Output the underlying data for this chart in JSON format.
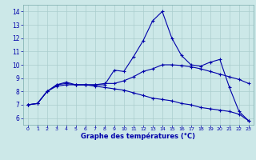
{
  "xlabel": "Graphe des températures (°C)",
  "background_color": "#cce8e8",
  "line_color": "#0000aa",
  "grid_color": "#aacece",
  "xlim": [
    -0.5,
    23.5
  ],
  "ylim": [
    5.5,
    14.5
  ],
  "yticks": [
    6,
    7,
    8,
    9,
    10,
    11,
    12,
    13,
    14
  ],
  "xticks": [
    0,
    1,
    2,
    3,
    4,
    5,
    6,
    7,
    8,
    9,
    10,
    11,
    12,
    13,
    14,
    15,
    16,
    17,
    18,
    19,
    20,
    21,
    22,
    23
  ],
  "line1_x": [
    0,
    1,
    2,
    3,
    4,
    5,
    6,
    7,
    8,
    9,
    10,
    11,
    12,
    13,
    14,
    15,
    16,
    17,
    18,
    19,
    20,
    21,
    22,
    23
  ],
  "line1_y": [
    7.0,
    7.1,
    8.0,
    8.5,
    8.7,
    8.5,
    8.5,
    8.5,
    8.5,
    9.6,
    9.5,
    10.6,
    11.8,
    13.3,
    14.0,
    12.0,
    10.7,
    10.0,
    9.9,
    10.2,
    10.4,
    8.3,
    6.5,
    5.8
  ],
  "line2_x": [
    0,
    1,
    2,
    3,
    4,
    5,
    6,
    7,
    8,
    9,
    10,
    11,
    12,
    13,
    14,
    15,
    16,
    17,
    18,
    19,
    20,
    21,
    22,
    23
  ],
  "line2_y": [
    7.0,
    7.1,
    8.0,
    8.5,
    8.6,
    8.5,
    8.5,
    8.5,
    8.6,
    8.6,
    8.8,
    9.1,
    9.5,
    9.7,
    10.0,
    10.0,
    9.95,
    9.85,
    9.7,
    9.5,
    9.3,
    9.1,
    8.9,
    8.6
  ],
  "line3_x": [
    0,
    1,
    2,
    3,
    4,
    5,
    6,
    7,
    8,
    9,
    10,
    11,
    12,
    13,
    14,
    15,
    16,
    17,
    18,
    19,
    20,
    21,
    22,
    23
  ],
  "line3_y": [
    7.0,
    7.1,
    8.0,
    8.4,
    8.5,
    8.5,
    8.5,
    8.4,
    8.3,
    8.2,
    8.1,
    7.9,
    7.7,
    7.5,
    7.4,
    7.3,
    7.1,
    7.0,
    6.8,
    6.7,
    6.6,
    6.5,
    6.3,
    5.8
  ]
}
